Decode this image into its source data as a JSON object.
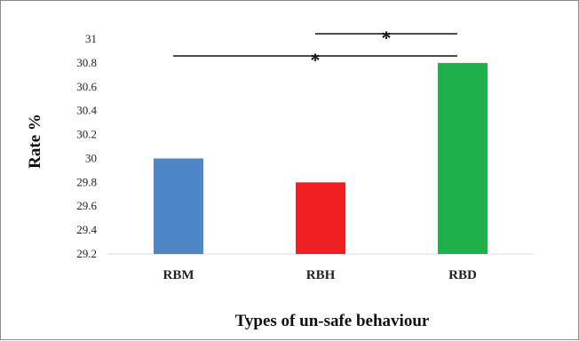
{
  "chart_data": {
    "type": "bar",
    "title": "",
    "xlabel": "Types of un-safe behaviour",
    "ylabel": "Rate %",
    "categories": [
      "RBM",
      "RBH",
      "RBD"
    ],
    "values": [
      30.0,
      29.8,
      30.8
    ],
    "colors": [
      "#4f86c6",
      "#ee2024",
      "#1faf4b"
    ],
    "ylim": [
      29.2,
      31
    ],
    "yticks": [
      "29.2",
      "29.4",
      "29.6",
      "29.8",
      "30",
      "30.2",
      "30.4",
      "30.6",
      "30.8",
      "31"
    ],
    "grid": false,
    "legend": "none",
    "annotations": [
      {
        "from": "RBM",
        "to": "RBD",
        "label": "*"
      },
      {
        "from": "RBH",
        "to": "RBD",
        "label": "*"
      }
    ]
  }
}
